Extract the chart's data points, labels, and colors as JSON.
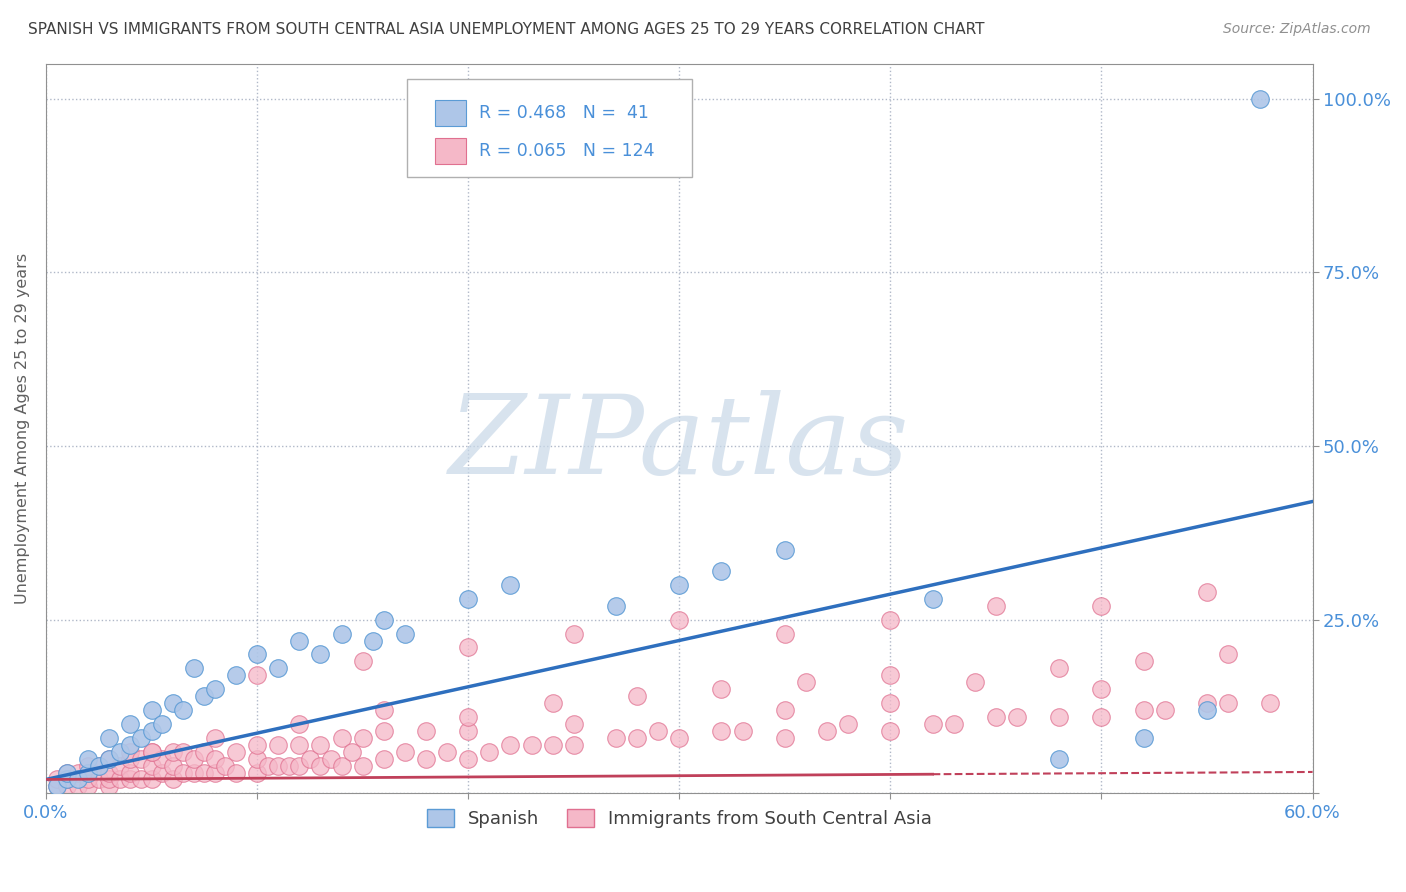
{
  "title": "SPANISH VS IMMIGRANTS FROM SOUTH CENTRAL ASIA UNEMPLOYMENT AMONG AGES 25 TO 29 YEARS CORRELATION CHART",
  "source": "Source: ZipAtlas.com",
  "ylabel": "Unemployment Among Ages 25 to 29 years",
  "xlim": [
    0.0,
    0.6
  ],
  "ylim": [
    0.0,
    1.05
  ],
  "xticks": [
    0.0,
    0.1,
    0.2,
    0.3,
    0.4,
    0.5,
    0.6
  ],
  "xticklabels": [
    "0.0%",
    "",
    "",
    "",
    "",
    "",
    "60.0%"
  ],
  "yticks": [
    0.0,
    0.25,
    0.5,
    0.75,
    1.0
  ],
  "yticklabels_right": [
    "",
    "25.0%",
    "50.0%",
    "75.0%",
    "100.0%"
  ],
  "watermark": "ZIPatlas",
  "series1_label": "Spanish",
  "series1_R": 0.468,
  "series1_N": 41,
  "series1_color": "#aec6e8",
  "series1_edge_color": "#5b9bd5",
  "series1_line_color": "#2e6fbe",
  "series2_label": "Immigrants from South Central Asia",
  "series2_R": 0.065,
  "series2_N": 124,
  "series2_color": "#f5b8c8",
  "series2_edge_color": "#e07090",
  "series2_line_color": "#c0405a",
  "legend_text_color": "#4a90d9",
  "background_color": "#ffffff",
  "grid_color": "#b0b8c8",
  "title_color": "#404040",
  "axis_color": "#909090",
  "watermark_color": "#c8d8e8",
  "series1_x": [
    0.005,
    0.01,
    0.01,
    0.015,
    0.02,
    0.02,
    0.025,
    0.03,
    0.03,
    0.035,
    0.04,
    0.04,
    0.045,
    0.05,
    0.05,
    0.055,
    0.06,
    0.065,
    0.07,
    0.075,
    0.08,
    0.09,
    0.1,
    0.11,
    0.12,
    0.13,
    0.14,
    0.155,
    0.16,
    0.17,
    0.2,
    0.22,
    0.27,
    0.3,
    0.32,
    0.35,
    0.42,
    0.48,
    0.52,
    0.55,
    0.575
  ],
  "series1_y": [
    0.01,
    0.02,
    0.03,
    0.02,
    0.03,
    0.05,
    0.04,
    0.05,
    0.08,
    0.06,
    0.07,
    0.1,
    0.08,
    0.09,
    0.12,
    0.1,
    0.13,
    0.12,
    0.18,
    0.14,
    0.15,
    0.17,
    0.2,
    0.18,
    0.22,
    0.2,
    0.23,
    0.22,
    0.25,
    0.23,
    0.28,
    0.3,
    0.27,
    0.3,
    0.32,
    0.35,
    0.28,
    0.05,
    0.08,
    0.12,
    1.0
  ],
  "series2_x": [
    0.005,
    0.005,
    0.01,
    0.01,
    0.01,
    0.015,
    0.015,
    0.02,
    0.02,
    0.02,
    0.02,
    0.025,
    0.025,
    0.03,
    0.03,
    0.03,
    0.03,
    0.035,
    0.035,
    0.04,
    0.04,
    0.04,
    0.04,
    0.045,
    0.045,
    0.05,
    0.05,
    0.05,
    0.055,
    0.055,
    0.06,
    0.06,
    0.06,
    0.065,
    0.065,
    0.07,
    0.07,
    0.075,
    0.075,
    0.08,
    0.08,
    0.085,
    0.09,
    0.09,
    0.1,
    0.1,
    0.1,
    0.105,
    0.11,
    0.11,
    0.115,
    0.12,
    0.12,
    0.125,
    0.13,
    0.13,
    0.135,
    0.14,
    0.14,
    0.145,
    0.15,
    0.15,
    0.16,
    0.16,
    0.17,
    0.18,
    0.18,
    0.19,
    0.2,
    0.2,
    0.21,
    0.22,
    0.23,
    0.24,
    0.25,
    0.25,
    0.27,
    0.28,
    0.29,
    0.3,
    0.32,
    0.33,
    0.35,
    0.35,
    0.37,
    0.38,
    0.4,
    0.4,
    0.42,
    0.43,
    0.45,
    0.46,
    0.48,
    0.5,
    0.5,
    0.52,
    0.53,
    0.55,
    0.56,
    0.58,
    0.1,
    0.15,
    0.2,
    0.25,
    0.3,
    0.35,
    0.4,
    0.45,
    0.5,
    0.55,
    0.05,
    0.08,
    0.12,
    0.16,
    0.2,
    0.24,
    0.28,
    0.32,
    0.36,
    0.4,
    0.44,
    0.48,
    0.52,
    0.56
  ],
  "series2_y": [
    0.01,
    0.02,
    0.01,
    0.02,
    0.03,
    0.01,
    0.03,
    0.01,
    0.02,
    0.03,
    0.04,
    0.02,
    0.04,
    0.01,
    0.02,
    0.03,
    0.05,
    0.02,
    0.04,
    0.02,
    0.03,
    0.05,
    0.06,
    0.02,
    0.05,
    0.02,
    0.04,
    0.06,
    0.03,
    0.05,
    0.02,
    0.04,
    0.06,
    0.03,
    0.06,
    0.03,
    0.05,
    0.03,
    0.06,
    0.03,
    0.05,
    0.04,
    0.03,
    0.06,
    0.03,
    0.05,
    0.07,
    0.04,
    0.04,
    0.07,
    0.04,
    0.04,
    0.07,
    0.05,
    0.04,
    0.07,
    0.05,
    0.04,
    0.08,
    0.06,
    0.04,
    0.08,
    0.05,
    0.09,
    0.06,
    0.05,
    0.09,
    0.06,
    0.05,
    0.09,
    0.06,
    0.07,
    0.07,
    0.07,
    0.07,
    0.1,
    0.08,
    0.08,
    0.09,
    0.08,
    0.09,
    0.09,
    0.08,
    0.12,
    0.09,
    0.1,
    0.09,
    0.13,
    0.1,
    0.1,
    0.11,
    0.11,
    0.11,
    0.11,
    0.15,
    0.12,
    0.12,
    0.13,
    0.13,
    0.13,
    0.17,
    0.19,
    0.21,
    0.23,
    0.25,
    0.23,
    0.25,
    0.27,
    0.27,
    0.29,
    0.06,
    0.08,
    0.1,
    0.12,
    0.11,
    0.13,
    0.14,
    0.15,
    0.16,
    0.17,
    0.16,
    0.18,
    0.19,
    0.2
  ]
}
